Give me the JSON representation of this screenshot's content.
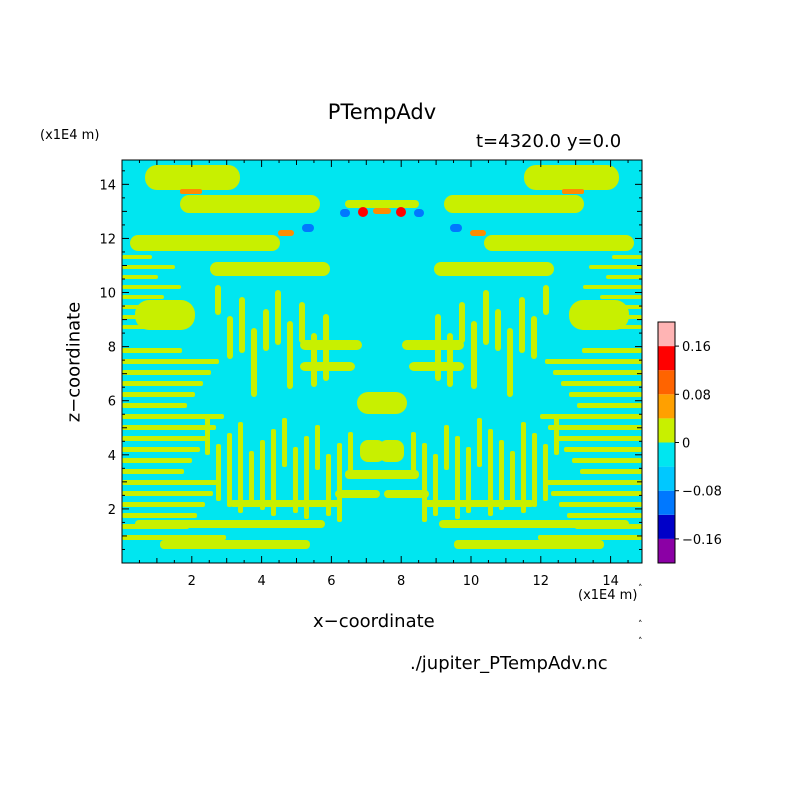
{
  "chart_data": {
    "type": "heatmap",
    "title": "PTempAdv",
    "subtitle": "t=4320.0 y=0.0",
    "xlabel": "x−coordinate",
    "ylabel": "z−coordinate",
    "x_unit": "(x1E4 m)",
    "z_unit": "(x1E4 m)",
    "xlim": [
      0,
      14.9
    ],
    "ylim": [
      0,
      14.9
    ],
    "x_ticks": [
      2,
      4,
      6,
      8,
      10,
      12,
      14
    ],
    "y_ticks": [
      2,
      4,
      6,
      8,
      10,
      12,
      14
    ],
    "colorbar": {
      "levels": [
        -0.2,
        -0.16,
        -0.12,
        -0.08,
        -0.04,
        0,
        0.04,
        0.08,
        0.12,
        0.16,
        0.2
      ],
      "tick_labels": [
        "0.16",
        "0.08",
        "0",
        "−0.08",
        "−0.16"
      ],
      "tick_values": [
        0.16,
        0.08,
        0,
        -0.08,
        -0.16
      ],
      "colors": [
        "#8b00a5",
        "#0000c8",
        "#0078ff",
        "#00c8ff",
        "#00e6f0",
        "#c8f000",
        "#ffa000",
        "#ff6400",
        "#ff0000",
        "#ffb4b4"
      ]
    },
    "field_description_values": {
      "dominant_levels": [
        -0.04,
        0.04
      ],
      "symmetric_about_x": 7.5
    },
    "source": "./jupiter_PTempAdv.nc"
  },
  "colors": {
    "cyan": "#00e6f0",
    "yellow": "#c8f000",
    "blue": "#0078ff",
    "orange": "#ff8c00",
    "red": "#ff0000"
  }
}
